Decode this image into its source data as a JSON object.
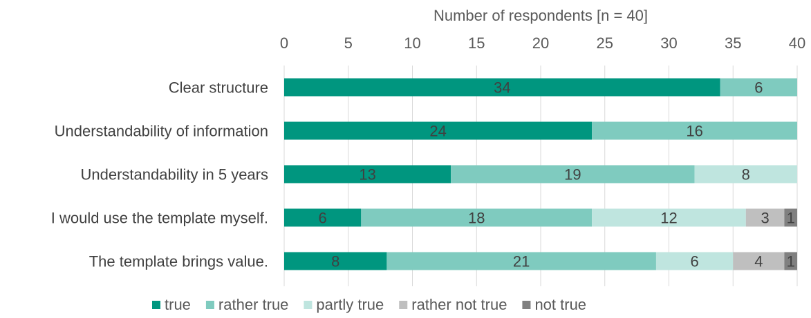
{
  "chart_data": {
    "type": "bar",
    "orientation": "horizontal",
    "stacked": true,
    "xlabel": "Number of respondents [n = 40]",
    "xaxis_position": "top",
    "xlim": [
      0,
      40
    ],
    "xticks": [
      0,
      5,
      10,
      15,
      20,
      25,
      30,
      35,
      40
    ],
    "grid": true,
    "legend_position": "bottom",
    "categories": [
      "Clear structure",
      "Understandability of information",
      "Understandability in 5 years",
      "I would use the template myself.",
      "The template brings  value."
    ],
    "series": [
      {
        "name": "true",
        "color": "#00967F",
        "values": [
          34,
          24,
          13,
          6,
          8
        ]
      },
      {
        "name": "rather true",
        "color": "#7FCBBF",
        "values": [
          6,
          16,
          19,
          18,
          21
        ]
      },
      {
        "name": "partly true",
        "color": "#BFE5DF",
        "values": [
          0,
          0,
          8,
          12,
          6
        ]
      },
      {
        "name": "rather not true",
        "color": "#BFBFBF",
        "values": [
          0,
          0,
          0,
          3,
          4
        ]
      },
      {
        "name": "not true",
        "color": "#808080",
        "values": [
          0,
          0,
          0,
          1,
          1
        ]
      }
    ]
  }
}
